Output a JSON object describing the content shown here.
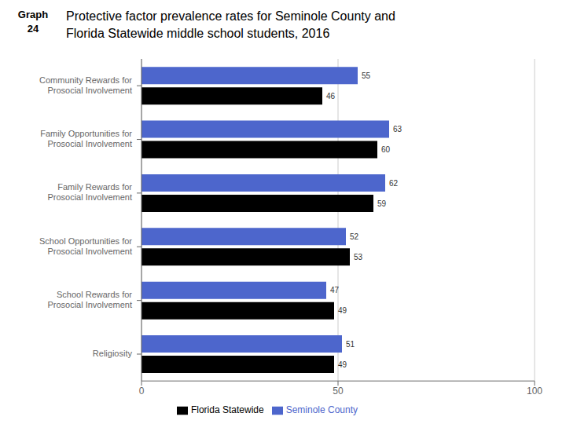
{
  "chart_data": {
    "type": "bar",
    "orientation": "horizontal",
    "title": "Protective factor prevalence rates for Seminole County and\nFlorida Statewide middle school students, 2016",
    "annotations": [
      "Graph\n24"
    ],
    "categories": [
      "Community Rewards for\nProsocial Involvement",
      "Family Opportunities for\nProsocial Involvement",
      "Family Rewards for\nProsocial Involvement",
      "School Opportunities for\nProsocial Involvement",
      "School Rewards for\nProsocial Involvement",
      "Religiosity"
    ],
    "series": [
      {
        "name": "Seminole County",
        "color": "#4d66cc",
        "values": [
          55,
          63,
          62,
          52,
          47,
          51
        ]
      },
      {
        "name": "Florida Statewide",
        "color": "#000000",
        "values": [
          46,
          60,
          59,
          53,
          49,
          49
        ]
      }
    ],
    "xlim": [
      0,
      100
    ],
    "xticks": [
      0,
      50,
      100
    ],
    "grid": true,
    "data_labels": true,
    "legend": "bottom"
  }
}
